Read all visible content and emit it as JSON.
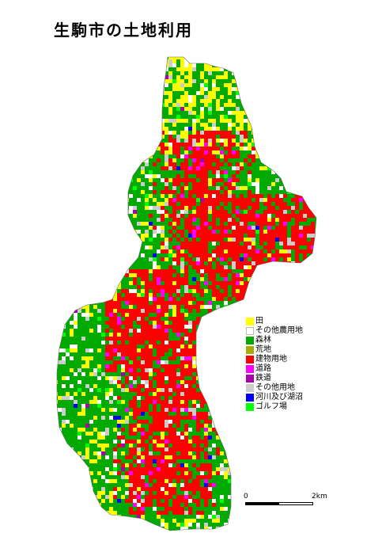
{
  "title": "生駒市の土地利用",
  "legend": [
    {
      "key": "paddy",
      "label": "田",
      "color": "#ffff00"
    },
    {
      "key": "other_farm",
      "label": "その他農用地",
      "color": "#ffffff"
    },
    {
      "key": "forest",
      "label": "森林",
      "color": "#00aa00"
    },
    {
      "key": "wasteland",
      "label": "荒地",
      "color": "#aaaa00"
    },
    {
      "key": "building",
      "label": "建物用地",
      "color": "#ff0000"
    },
    {
      "key": "road",
      "label": "道路",
      "color": "#ff00ff"
    },
    {
      "key": "railway",
      "label": "鉄道",
      "color": "#aa00aa"
    },
    {
      "key": "other",
      "label": "その他用地",
      "color": "#cccccc"
    },
    {
      "key": "water",
      "label": "河川及び湖沼",
      "color": "#0000ff"
    },
    {
      "key": "golf",
      "label": "ゴルフ場",
      "color": "#00ff00"
    }
  ],
  "scale": {
    "start_label": "0",
    "end_label": "2km"
  }
}
